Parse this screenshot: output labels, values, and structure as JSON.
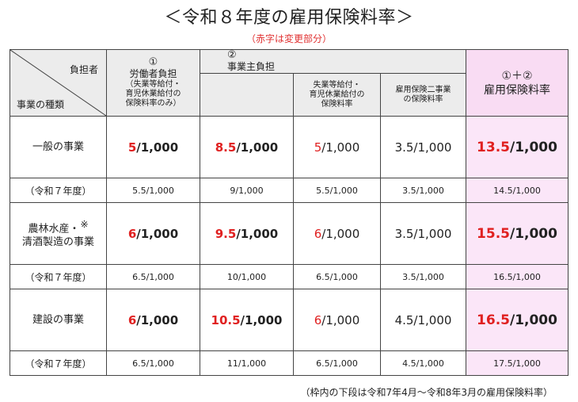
{
  "title": "＜令和８年度の雇用保険料率＞",
  "subtitle": "（赤字は変更部分）",
  "header": {
    "corner_top": "負担者",
    "corner_bottom": "事業の種類",
    "worker_num": "①",
    "worker_label": "労働者負担",
    "worker_note1": "（失業等給付・",
    "worker_note2": "育児休業給付の",
    "worker_note3": "保険料率のみ）",
    "employer_num": "②",
    "employer_label": "事業主負担",
    "sub_benefits1": "失業等給付・",
    "sub_benefits2": "育児休業給付の",
    "sub_benefits3": "保険料率",
    "sub_two1": "雇用保険二事業",
    "sub_two2": "の保険料率",
    "total_num": "①＋②",
    "total_label": "雇用保険料率"
  },
  "rows": [
    {
      "category_line1": "一般の事業",
      "category_line2": "",
      "note": "",
      "worker": {
        "red": "5",
        "rest": "/1,000"
      },
      "employer": {
        "red": "8.5",
        "rest": "/1,000"
      },
      "benefits": {
        "red": "5",
        "rest": "/1,000"
      },
      "two": "3.5/1,000",
      "total": {
        "red": "13.5",
        "rest": "/1,000"
      },
      "prev_label": "（令和７年度）",
      "prev": {
        "worker": "5.5/1,000",
        "employer": "9/1,000",
        "benefits": "5.5/1,000",
        "two": "3.5/1,000",
        "total": "14.5/1,000"
      }
    },
    {
      "category_line1": "農林水産・",
      "category_line2": "清酒製造の事業",
      "note": "※",
      "worker": {
        "red": "6",
        "rest": "/1,000"
      },
      "employer": {
        "red": "9.5",
        "rest": "/1,000"
      },
      "benefits": {
        "red": "6",
        "rest": "/1,000"
      },
      "two": "3.5/1,000",
      "total": {
        "red": "15.5",
        "rest": "/1,000"
      },
      "prev_label": "（令和７年度）",
      "prev": {
        "worker": "6.5/1,000",
        "employer": "10/1,000",
        "benefits": "6.5/1,000",
        "two": "3.5/1,000",
        "total": "16.5/1,000"
      }
    },
    {
      "category_line1": "建設の事業",
      "category_line2": "",
      "note": "",
      "worker": {
        "red": "6",
        "rest": "/1,000"
      },
      "employer": {
        "red": "10.5",
        "rest": "/1,000"
      },
      "benefits": {
        "red": "6",
        "rest": "/1,000"
      },
      "two": "4.5/1,000",
      "total": {
        "red": "16.5",
        "rest": "/1,000"
      },
      "prev_label": "（令和７年度）",
      "prev": {
        "worker": "6.5/1,000",
        "employer": "11/1,000",
        "benefits": "6.5/1,000",
        "two": "4.5/1,000",
        "total": "17.5/1,000"
      }
    }
  ],
  "footnote": "（枠内の下段は令和7年4月～令和8年3月の雇用保険料率）"
}
